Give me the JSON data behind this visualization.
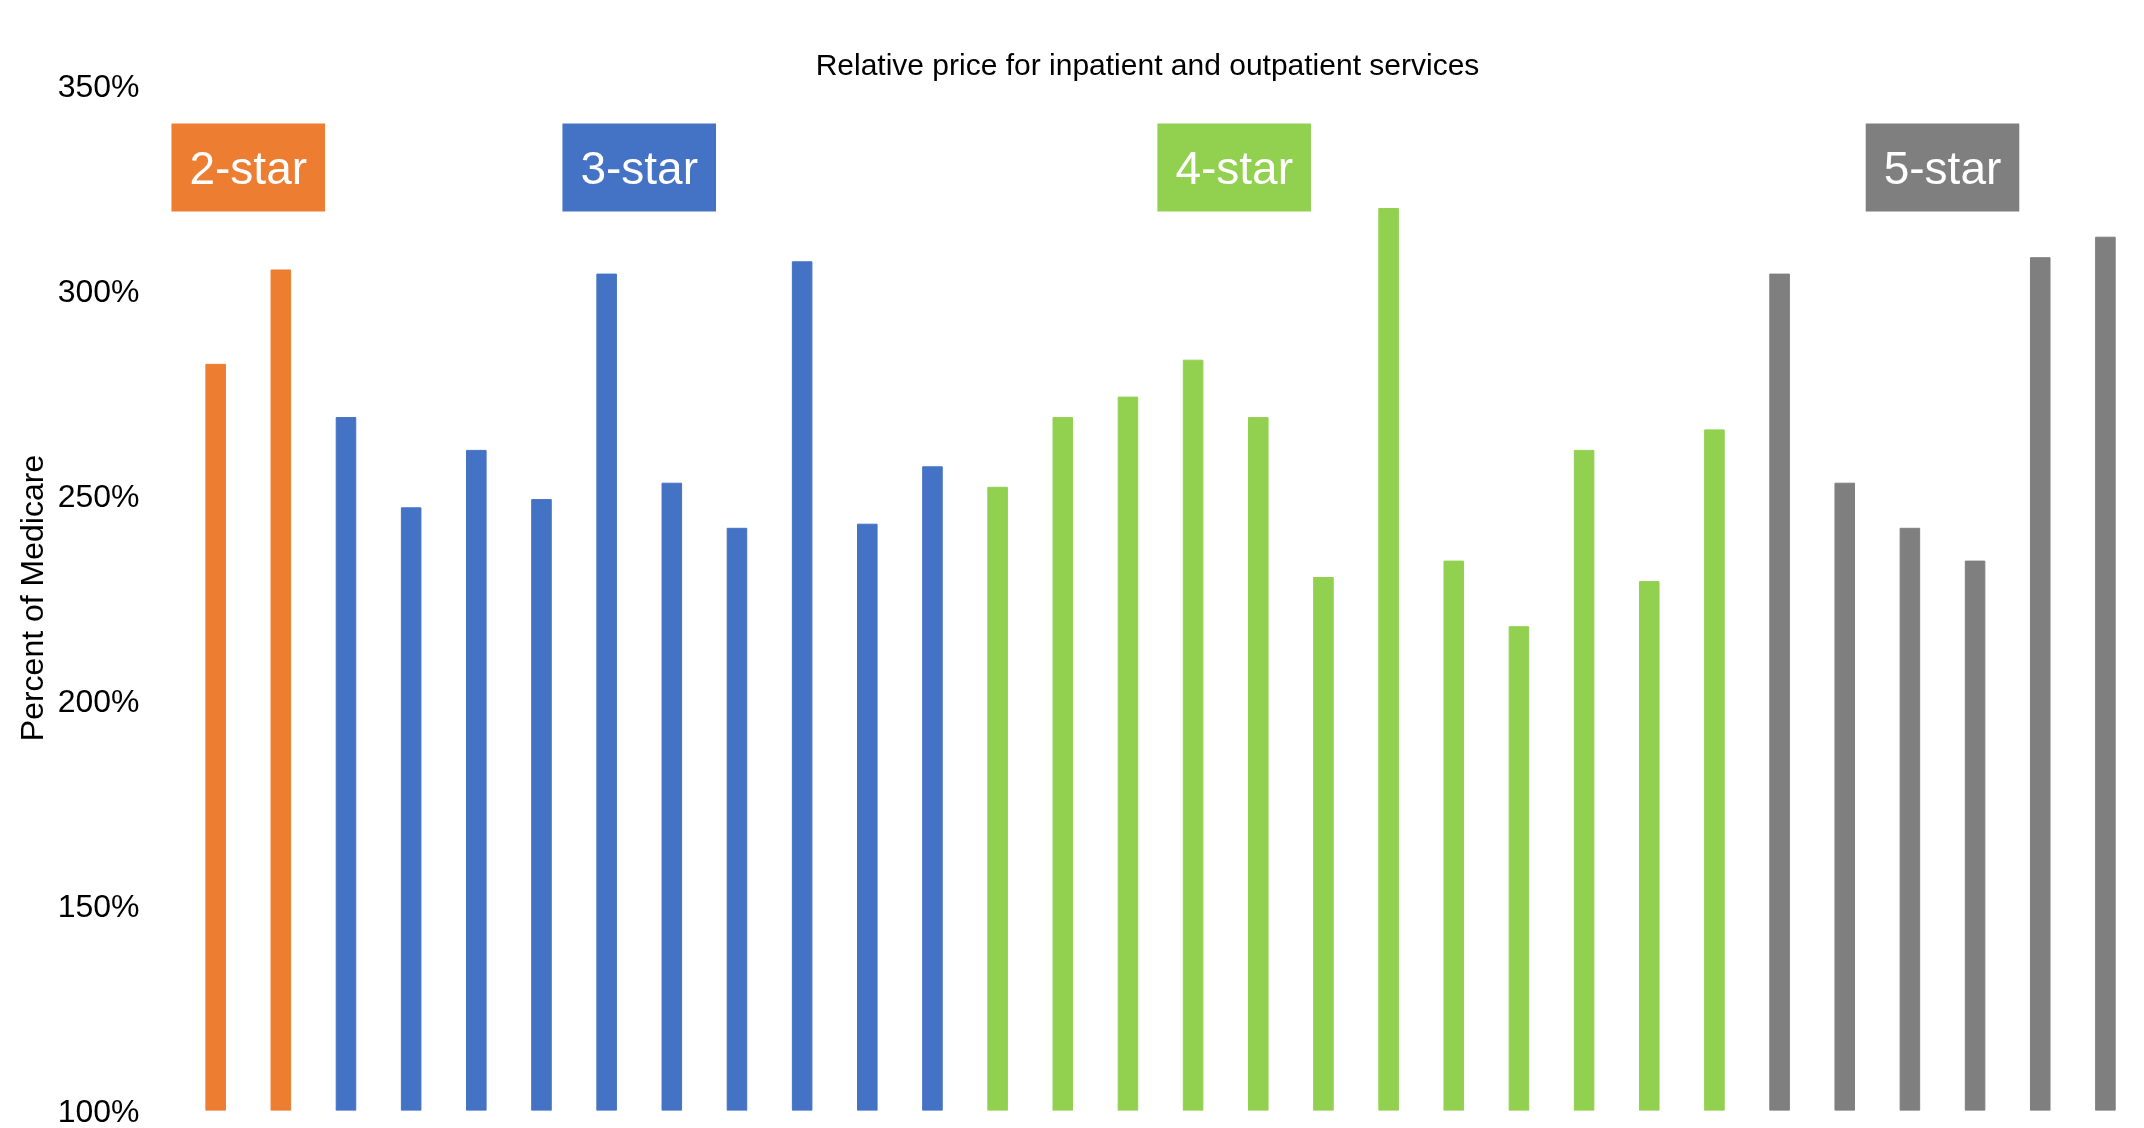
{
  "chart_data": {
    "type": "bar",
    "title": "Relative price for inpatient and outpatient services",
    "ylabel": "Percent of Medicare",
    "categories": [
      null,
      null,
      null,
      null,
      null,
      null,
      null,
      null,
      null,
      null,
      null,
      null,
      null,
      null,
      null,
      null,
      null,
      null,
      null,
      null,
      null,
      null,
      null,
      null,
      null,
      null,
      null,
      null,
      null,
      null
    ],
    "values": [
      282,
      305,
      269,
      247,
      261,
      249,
      304,
      253,
      242,
      307,
      243,
      257,
      252,
      269,
      274,
      283,
      269,
      230,
      320,
      234,
      218,
      261,
      229,
      266,
      304,
      253,
      242,
      234,
      308,
      313
    ],
    "colors": [
      "#ed7d31",
      "#ed7d31",
      "#4472c4",
      "#4472c4",
      "#4472c4",
      "#4472c4",
      "#4472c4",
      "#4472c4",
      "#4472c4",
      "#4472c4",
      "#4472c4",
      "#4472c4",
      "#92d050",
      "#92d050",
      "#92d050",
      "#92d050",
      "#92d050",
      "#92d050",
      "#92d050",
      "#92d050",
      "#92d050",
      "#92d050",
      "#92d050",
      "#92d050",
      "#7f7f7f",
      "#7f7f7f",
      "#7f7f7f",
      "#7f7f7f",
      "#7f7f7f",
      "#7f7f7f"
    ],
    "annotations": [
      "2-star",
      "3-star",
      "4-star",
      "5-star"
    ],
    "ylim": [
      100,
      350
    ],
    "yticks": [
      {
        "value": 100,
        "label": "100%"
      },
      {
        "value": 150,
        "label": "150%"
      },
      {
        "value": 200,
        "label": "200%"
      },
      {
        "value": 250,
        "label": "250%"
      },
      {
        "value": 300,
        "label": "300%"
      },
      {
        "value": 350,
        "label": "350%"
      }
    ],
    "grid": false
  }
}
